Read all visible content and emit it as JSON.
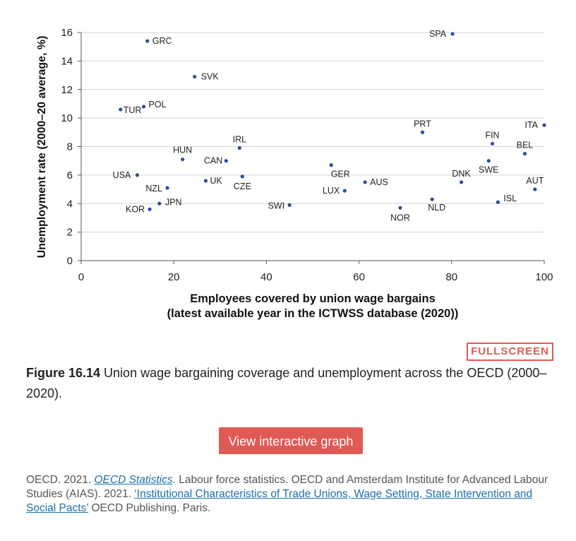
{
  "chart_data": {
    "type": "scatter",
    "xlabel_line1": "Employees covered by union wage bargains",
    "xlabel_line2": "(latest available year in the ICTWSS database (2020))",
    "ylabel": "Unemployment rate (2000–20 average, %)",
    "xlim": [
      0,
      100
    ],
    "ylim": [
      0,
      16
    ],
    "x_ticks": [
      0,
      20,
      40,
      60,
      80,
      100
    ],
    "y_ticks": [
      0,
      2,
      4,
      6,
      8,
      10,
      12,
      14,
      16
    ],
    "grid": "horizontal",
    "point_color": "#2e4a9e",
    "points": [
      {
        "label": "SPA",
        "x": 80.2,
        "y": 15.9
      },
      {
        "label": "GRC",
        "x": 14.3,
        "y": 15.4
      },
      {
        "label": "SVK",
        "x": 24.5,
        "y": 12.9
      },
      {
        "label": "TUR",
        "x": 8.5,
        "y": 10.6
      },
      {
        "label": "POL",
        "x": 13.5,
        "y": 10.8
      },
      {
        "label": "ITA",
        "x": 100.0,
        "y": 9.5
      },
      {
        "label": "PRT",
        "x": 73.7,
        "y": 9.0
      },
      {
        "label": "FIN",
        "x": 88.8,
        "y": 8.2
      },
      {
        "label": "IRL",
        "x": 34.2,
        "y": 7.9
      },
      {
        "label": "BEL",
        "x": 95.8,
        "y": 7.5
      },
      {
        "label": "HUN",
        "x": 21.9,
        "y": 7.1
      },
      {
        "label": "CAN",
        "x": 31.3,
        "y": 7.0
      },
      {
        "label": "SWE",
        "x": 88.0,
        "y": 7.0
      },
      {
        "label": "GER",
        "x": 54.0,
        "y": 6.7
      },
      {
        "label": "USA",
        "x": 12.1,
        "y": 6.0
      },
      {
        "label": "CZE",
        "x": 34.8,
        "y": 5.9
      },
      {
        "label": "UK",
        "x": 26.9,
        "y": 5.6
      },
      {
        "label": "AUS",
        "x": 61.3,
        "y": 5.5
      },
      {
        "label": "DNK",
        "x": 82.1,
        "y": 5.5
      },
      {
        "label": "NZL",
        "x": 18.6,
        "y": 5.1
      },
      {
        "label": "LUX",
        "x": 56.9,
        "y": 4.9
      },
      {
        "label": "AUT",
        "x": 98.0,
        "y": 5.0
      },
      {
        "label": "NLD",
        "x": 75.8,
        "y": 4.3
      },
      {
        "label": "ISL",
        "x": 90.0,
        "y": 4.1
      },
      {
        "label": "JPN",
        "x": 16.9,
        "y": 4.0
      },
      {
        "label": "SWI",
        "x": 45.0,
        "y": 3.9
      },
      {
        "label": "NOR",
        "x": 68.9,
        "y": 3.7
      },
      {
        "label": "KOR",
        "x": 14.8,
        "y": 3.6
      }
    ]
  },
  "fullscreen_label": "FULLSCREEN",
  "caption": {
    "figure_number": "Figure 16.14",
    "text": " Union wage bargaining coverage and unemployment across the OECD (2000–2020)."
  },
  "interactive_button_label": "View interactive graph",
  "source": {
    "part1": "OECD. 2021. ",
    "link1": "OECD Statistics",
    "part2": ". Labour force statistics. OECD and Amsterdam Institute for Advanced Labour Studies (AIAS). 2021. ",
    "link2": "‘Institutional Characteristics of Trade Unions, Wage Setting, State Intervention and Social Pacts’",
    "part3": " OECD Publishing. Paris."
  },
  "colors": {
    "accent": "#e05a55",
    "link": "#1d6fa8",
    "point": "#2e4a9e"
  }
}
